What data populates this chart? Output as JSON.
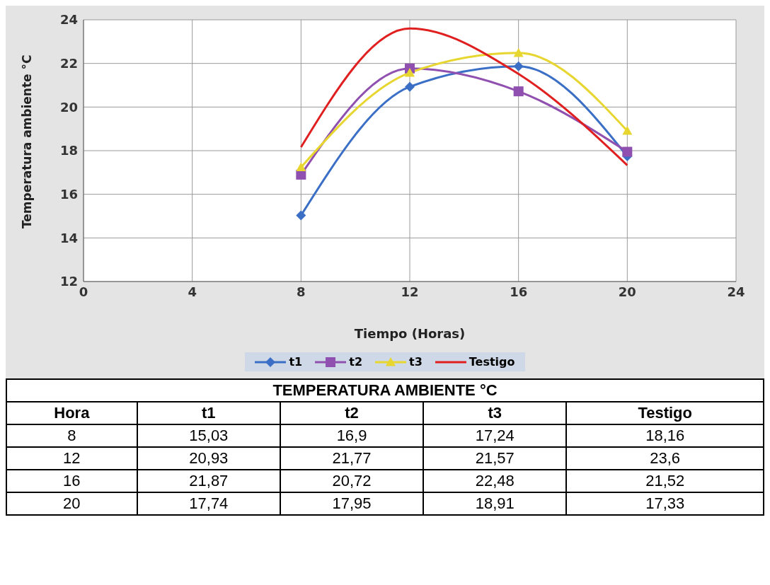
{
  "chart_data": [
    {
      "type": "line",
      "xlabel": "Tiempo (Horas)",
      "ylabel": "Temperatura ambiente °C",
      "x": [
        8,
        12,
        16,
        20
      ],
      "series": [
        {
          "name": "t1",
          "color": "#3b6fc6",
          "marker": "diamond",
          "values": [
            15.03,
            20.93,
            21.87,
            17.74
          ]
        },
        {
          "name": "t2",
          "color": "#9050b0",
          "marker": "square",
          "values": [
            16.9,
            21.77,
            20.72,
            17.95
          ]
        },
        {
          "name": "t3",
          "color": "#e8d630",
          "marker": "triangle",
          "values": [
            17.24,
            21.57,
            22.48,
            18.91
          ]
        },
        {
          "name": "Testigo",
          "color": "#e02020",
          "marker": "none",
          "values": [
            18.16,
            23.6,
            21.52,
            17.33
          ]
        }
      ],
      "xlim": [
        0,
        24
      ],
      "xticks": [
        0,
        4,
        8,
        12,
        16,
        20,
        24
      ],
      "ylim": [
        12,
        24
      ],
      "yticks": [
        12,
        14,
        16,
        18,
        20,
        22,
        24
      ],
      "grid": true,
      "legend": "bottom",
      "line_style": "solid"
    },
    {
      "type": "heatmap",
      "title": "TEMPERATURA AMBIENTE °C",
      "ylabel": "Hora",
      "categories": [
        "t1",
        "t2",
        "t3",
        "Testigo"
      ],
      "y_categories": [
        "8",
        "12",
        "16",
        "20"
      ],
      "cells": [
        [
          null,
          null,
          null,
          null
        ],
        [
          null,
          null,
          null,
          null
        ],
        [
          null,
          null,
          null,
          null
        ],
        [
          null,
          null,
          null,
          null
        ]
      ],
      "cell_labels": [
        [
          "15,03",
          "16,9",
          "17,24",
          "18,16"
        ],
        [
          "20,93",
          "21,77",
          "21,57",
          "23,6"
        ],
        [
          "21,87",
          "20,72",
          "22,48",
          "21,52"
        ],
        [
          "17,74",
          "17,95",
          "18,91",
          "17,33"
        ]
      ]
    }
  ]
}
